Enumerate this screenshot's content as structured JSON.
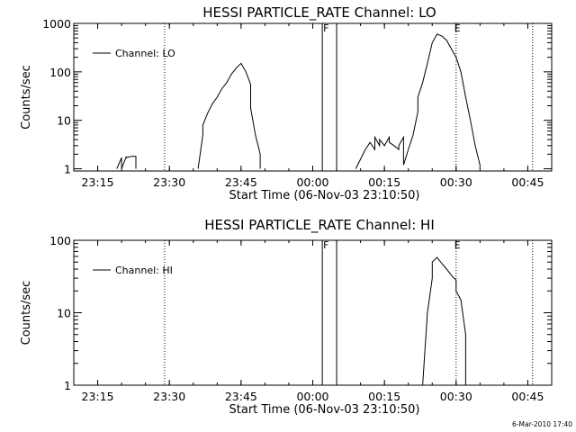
{
  "chart_data": [
    {
      "type": "line",
      "title": "HESSI PARTICLE_RATE Channel: LO",
      "xlabel": "Start Time (06-Nov-03 23:10:50)",
      "ylabel": "Counts/sec",
      "y_scale": "log",
      "ylim": [
        0.9,
        1000
      ],
      "xlim": [
        "23:10",
        "00:50"
      ],
      "x_tick_labels": [
        "23:15",
        "23:30",
        "23:45",
        "00:00",
        "00:15",
        "00:30",
        "00:45"
      ],
      "y_tick_labels": [
        "1000",
        "100",
        "10",
        "1"
      ],
      "legend": {
        "position": "top-left",
        "entries": [
          "Channel: LO"
        ]
      },
      "vertical_lines": [
        {
          "x": "23:29",
          "style": "dotted"
        },
        {
          "x": "00:30",
          "style": "dotted"
        },
        {
          "x": "00:46",
          "style": "dotted"
        },
        {
          "x": "00:02",
          "style": "solid",
          "label": "F"
        },
        {
          "x": "00:05",
          "style": "solid"
        }
      ],
      "markers": [
        {
          "x": "00:30",
          "label": "E"
        }
      ],
      "series": [
        {
          "name": "Channel: LO",
          "segments": [
            {
              "x": [
                "23:19",
                "23:20",
                "23:20",
                "23:21",
                "23:21",
                "23:22",
                "23:23",
                "23:23"
              ],
              "y": [
                1,
                1.7,
                1,
                1.8,
                1.7,
                1.8,
                1.8,
                1
              ]
            },
            {
              "x": [
                "23:36",
                "23:37",
                "23:37",
                "23:38",
                "23:39",
                "23:40",
                "23:41",
                "23:42",
                "23:43",
                "23:44",
                "23:45",
                "23:46",
                "23:47",
                "23:47",
                "23:48",
                "23:49",
                "23:49"
              ],
              "y": [
                1,
                5,
                8,
                14,
                22,
                30,
                45,
                60,
                90,
                120,
                150,
                100,
                55,
                18,
                5,
                2,
                1
              ]
            },
            {
              "x": [
                "00:09",
                "00:11",
                "00:12",
                "00:13",
                "00:13",
                "00:14",
                "00:14",
                "00:15",
                "00:16",
                "00:16",
                "00:17",
                "00:18",
                "00:18",
                "00:19",
                "00:19",
                "00:20",
                "00:21",
                "00:22",
                "00:22",
                "00:23",
                "00:24",
                "00:25",
                "00:26",
                "00:27",
                "00:28",
                "00:29",
                "00:30",
                "00:31",
                "00:32",
                "00:33",
                "00:34",
                "00:35",
                "00:35"
              ],
              "y": [
                1,
                2.5,
                3.5,
                2.5,
                4.5,
                3,
                4,
                3,
                4.5,
                3.5,
                3,
                2.5,
                3,
                4.5,
                1.2,
                2.5,
                5,
                15,
                30,
                60,
                150,
                400,
                600,
                550,
                450,
                300,
                200,
                100,
                30,
                10,
                3,
                1.2,
                1
              ]
            }
          ]
        }
      ]
    },
    {
      "type": "line",
      "title": "HESSI PARTICLE_RATE Channel: HI",
      "xlabel": "Start Time (06-Nov-03 23:10:50)",
      "ylabel": "Counts/sec",
      "y_scale": "log",
      "ylim": [
        1,
        100
      ],
      "xlim": [
        "23:10",
        "00:50"
      ],
      "x_tick_labels": [
        "23:15",
        "23:30",
        "23:45",
        "00:00",
        "00:15",
        "00:30",
        "00:45"
      ],
      "y_tick_labels": [
        "100",
        "10",
        "1"
      ],
      "legend": {
        "position": "top-left",
        "entries": [
          "Channel: HI"
        ]
      },
      "vertical_lines": [
        {
          "x": "23:29",
          "style": "dotted"
        },
        {
          "x": "00:30",
          "style": "dotted"
        },
        {
          "x": "00:46",
          "style": "dotted"
        },
        {
          "x": "00:02",
          "style": "solid",
          "label": "F"
        },
        {
          "x": "00:05",
          "style": "solid"
        }
      ],
      "markers": [
        {
          "x": "00:30",
          "label": "E"
        }
      ],
      "series": [
        {
          "name": "Channel: HI",
          "segments": [
            {
              "x": [
                "00:23",
                "00:24",
                "00:25",
                "00:25",
                "00:26",
                "00:27",
                "00:28",
                "00:29",
                "00:30",
                "00:30",
                "00:31",
                "00:32",
                "00:32"
              ],
              "y": [
                1,
                10,
                30,
                50,
                58,
                48,
                40,
                33,
                28,
                20,
                15,
                5,
                1
              ]
            }
          ]
        }
      ]
    }
  ],
  "stamp": "6-Mar-2010 17:40"
}
